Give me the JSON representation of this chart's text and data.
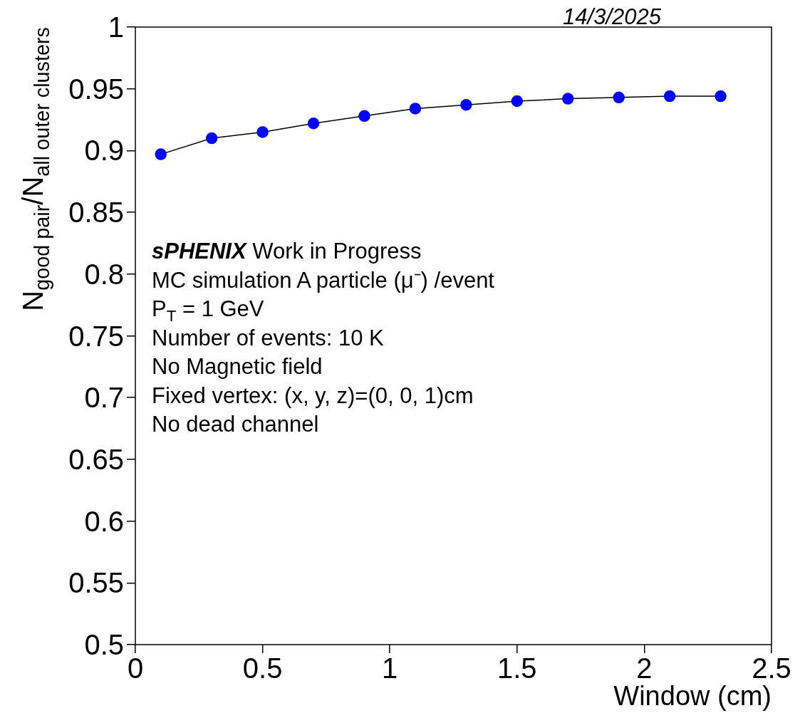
{
  "chart_data": {
    "type": "line",
    "xlabel": "Window (cm)",
    "ylabel": "N$_{good pair}$/N$_{all outer clusters}$",
    "x": [
      0.1,
      0.3,
      0.5,
      0.7,
      0.9,
      1.1,
      1.3,
      1.5,
      1.7,
      1.9,
      2.1,
      2.3
    ],
    "series": [
      {
        "color": "#0000ff",
        "values": [
          0.897,
          0.91,
          0.915,
          0.922,
          0.928,
          0.934,
          0.937,
          0.94,
          0.942,
          0.943,
          0.944,
          0.944
        ]
      }
    ],
    "xlim": [
      0,
      2.5
    ],
    "xticks": [
      0,
      0.5,
      1,
      1.5,
      2,
      2.5
    ],
    "ylim": [
      0.5,
      1
    ],
    "yticks": [
      0.5,
      0.55,
      0.6,
      0.65,
      0.7,
      0.75,
      0.8,
      0.85,
      0.9,
      0.95,
      1
    ],
    "grid": false,
    "legend": false,
    "marker": "circle",
    "line_style": "solid",
    "annotations": [
      "14/3/2025",
      "sPHENIX Work in Progress",
      "MC simulation A particle (μ⁻) /event",
      "P$_{T}$ = 1 GeV",
      "Number of events: 10 K",
      "No Magnetic field",
      "Fixed vertex: (x, y, z)=(0, 0, 1)cm",
      "No dead channel"
    ]
  }
}
